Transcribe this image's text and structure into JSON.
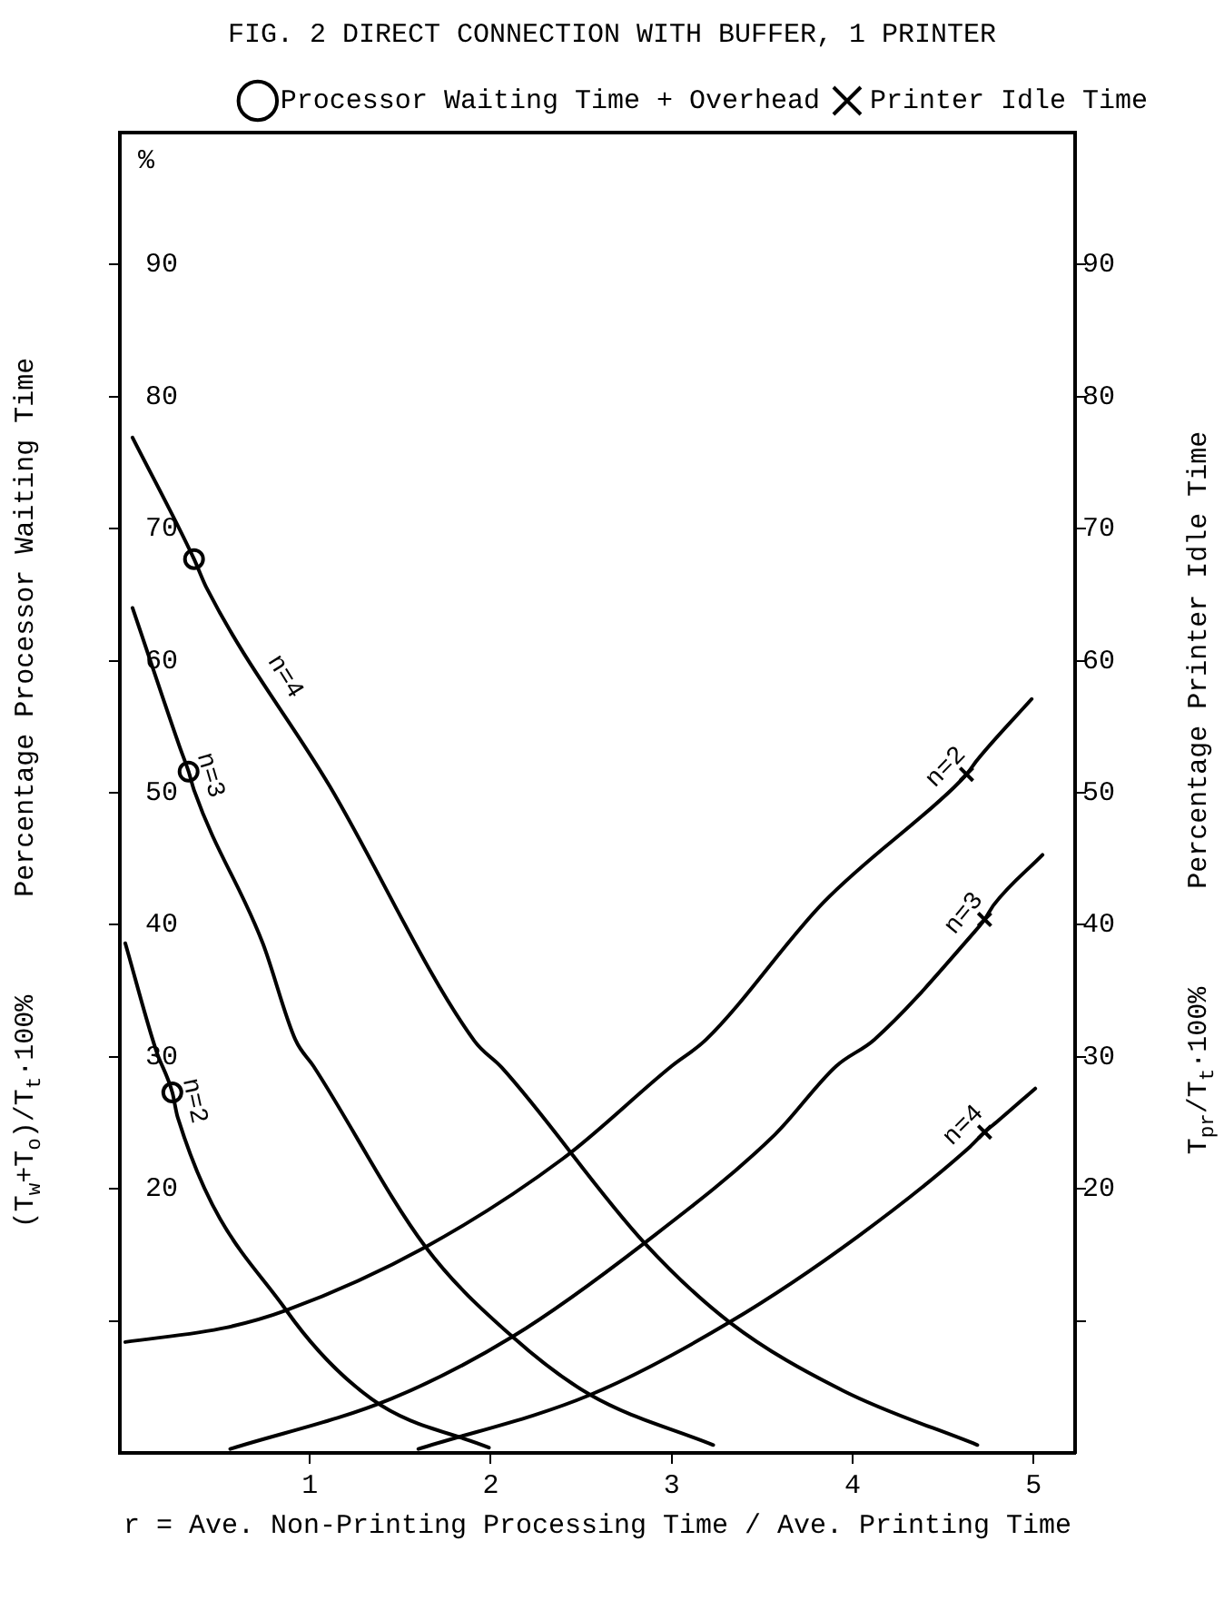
{
  "chart_data": {
    "type": "line",
    "title": "FIG. 2 DIRECT CONNECTION WITH BUFFER, 1 PRINTER",
    "xlabel": "r = Ave. Non-Printing Processing Time / Ave. Printing Time",
    "ylabel": "(T$_{w}$+T$_{o}$)/T$_{t}$·100%      Percentage Processor Waiting Time",
    "y2label": "T$_{pr}$/T$_{t}$·100%      Percentage Printer Idle Time",
    "annotations": [
      "%"
    ],
    "xlim": [
      -0.05,
      5.23
    ],
    "xticks": [
      1,
      2,
      3,
      4,
      5
    ],
    "ylim": [
      0,
      100
    ],
    "yticks": [
      {
        "value": 10,
        "label": null
      },
      20,
      30,
      40,
      50,
      60,
      70,
      80,
      90
    ],
    "y2lim": [
      0,
      100
    ],
    "y2ticks": [
      {
        "value": 10,
        "label": null
      },
      20,
      30,
      40,
      50,
      60,
      70,
      80,
      90
    ],
    "grid": false,
    "legend": "top right",
    "line_style": "solid",
    "series": [
      {
        "name": "n=4",
        "marker": "none",
        "color": "#000000",
        "x": [
          0.02,
          0.36,
          0.43,
          1.11,
          1.91,
          2.06,
          2.85,
          3.32,
          3.95,
          4.69
        ],
        "values": [
          76.9,
          67.7,
          65.5,
          50.5,
          31.2,
          29.2,
          15.9,
          9.9,
          4.7,
          0.6
        ]
      },
      {
        "name": "n=3",
        "marker": "none",
        "color": "#000000",
        "x": [
          0.02,
          0.28,
          0.33,
          0.36,
          0.74,
          0.92,
          1.02,
          1.64,
          2.12,
          2.55,
          3.23
        ],
        "values": [
          64.0,
          53.5,
          51.6,
          50.2,
          38.6,
          31.3,
          29.3,
          15.6,
          8.8,
          4.4,
          0.6
        ]
      },
      {
        "name": "n=2",
        "marker": "none",
        "color": "#000000",
        "x": [
          -0.02,
          0.15,
          0.24,
          0.27,
          0.87,
          1.34,
          1.99
        ],
        "values": [
          38.6,
          30.5,
          27.3,
          25.4,
          10.8,
          4.1,
          0.4
        ]
      },
      {
        "name": "n=2",
        "marker": "none",
        "color": "#000000",
        "x": [
          -0.02,
          0.54,
          0.87,
          1.64,
          2.4,
          3.0,
          3.19,
          3.84,
          4.56,
          4.63,
          4.69,
          4.99
        ],
        "values": [
          8.4,
          9.5,
          10.8,
          15.6,
          22.3,
          29.3,
          31.3,
          41.7,
          50.4,
          51.4,
          52.5,
          57.1
        ]
      },
      {
        "name": "n=3",
        "marker": "none",
        "color": "#000000",
        "x": [
          0.56,
          1.45,
          2.12,
          2.85,
          3.57,
          3.91,
          4.12,
          4.67,
          4.73,
          4.78,
          5.05
        ],
        "values": [
          0.3,
          4.1,
          8.8,
          15.9,
          24.1,
          29.3,
          31.3,
          39.4,
          40.4,
          41.5,
          45.3
        ]
      },
      {
        "name": "n=4",
        "marker": "none",
        "color": "#000000",
        "x": [
          1.6,
          2.55,
          3.32,
          4.03,
          4.65,
          4.73,
          4.8,
          5.01
        ],
        "values": [
          0.3,
          4.4,
          9.9,
          16.4,
          23.2,
          24.3,
          25.1,
          27.6
        ]
      },
      {
        "name": "Processor Waiting Time + Overhead",
        "type": "scatter",
        "marker": "circle",
        "color": "#000000",
        "x": [
          0.36,
          0.33,
          0.24
        ],
        "values": [
          67.7,
          51.6,
          27.3
        ]
      },
      {
        "name": "Printer Idle Time",
        "type": "scatter",
        "marker": "cross",
        "color": "#000000",
        "x": [
          4.63,
          4.73,
          4.73
        ],
        "values": [
          51.4,
          40.4,
          24.3
        ]
      }
    ]
  }
}
